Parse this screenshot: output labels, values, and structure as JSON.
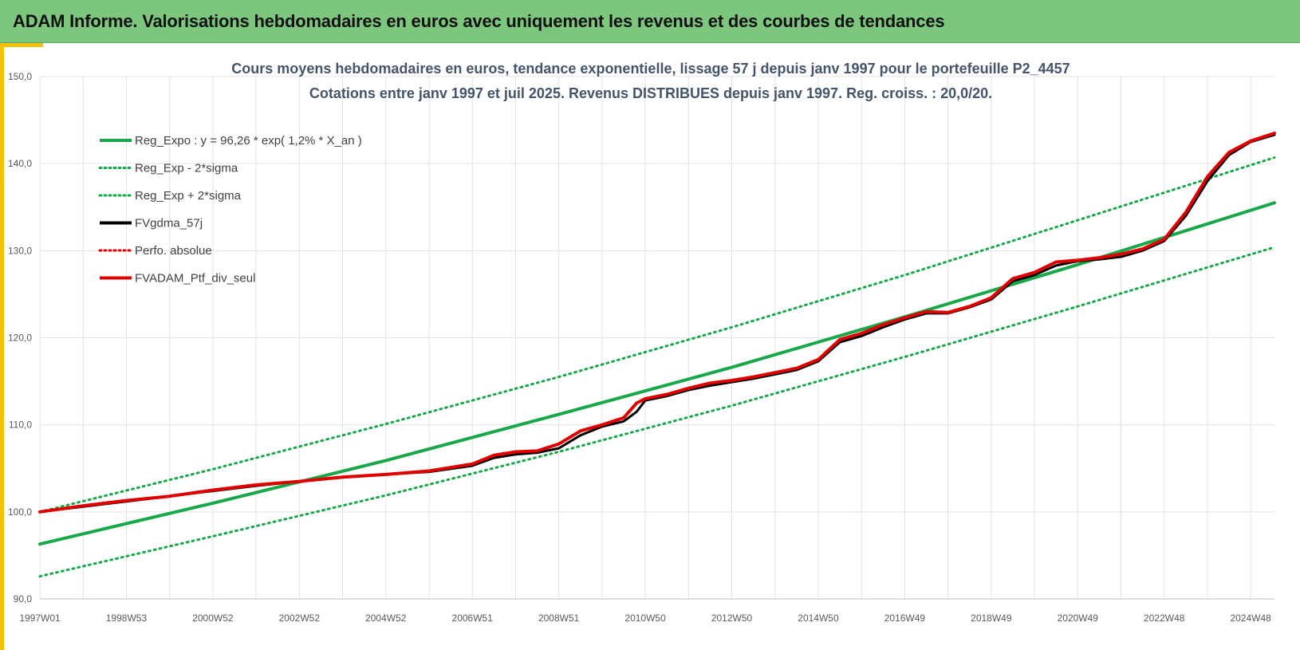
{
  "header": {
    "title": "ADAM Informe. Valorisations hebdomadaires en euros avec uniquement les revenus et des courbes de tendances"
  },
  "colors": {
    "header_bg": "#7dc67d",
    "accent": "#f2c200",
    "green": "#18a84a",
    "red": "#e00000",
    "black": "#000000",
    "title_text": "#44546a"
  },
  "chart_data": {
    "type": "line",
    "title_line1": "Cours moyens hebdomadaires  en euros, tendance exponentielle, lissage 57 j depuis janv 1997 pour le portefeuille P2_4457",
    "title_line2": "Cotations entre janv 1997 et juil 2025. Revenus DISTRIBUES depuis janv 1997. Reg. croiss. : 20,0/20.",
    "ylim": [
      90,
      150
    ],
    "yticks": [
      "90,0",
      "100,0",
      "110,0",
      "120,0",
      "130,0",
      "140,0",
      "150,0"
    ],
    "xlim": [
      1997.0,
      2025.55
    ],
    "xticks": [
      {
        "label": "1997W01",
        "x": 1997.0
      },
      {
        "label": "1998W53",
        "x": 1999.0
      },
      {
        "label": "2000W52",
        "x": 2001.0
      },
      {
        "label": "2002W52",
        "x": 2003.0
      },
      {
        "label": "2004W52",
        "x": 2005.0
      },
      {
        "label": "2006W51",
        "x": 2007.0
      },
      {
        "label": "2008W51",
        "x": 2009.0
      },
      {
        "label": "2010W50",
        "x": 2011.0
      },
      {
        "label": "2012W50",
        "x": 2013.0
      },
      {
        "label": "2014W50",
        "x": 2015.0
      },
      {
        "label": "2016W49",
        "x": 2017.0
      },
      {
        "label": "2018W49",
        "x": 2019.0
      },
      {
        "label": "2020W49",
        "x": 2021.0
      },
      {
        "label": "2022W48",
        "x": 2023.0
      },
      {
        "label": "2024W48",
        "x": 2025.0
      }
    ],
    "legend": [
      {
        "name": "Reg_Expo : y = 96,26 * exp( 1,2% *  X_an )",
        "color": "#18a84a",
        "style": "solid"
      },
      {
        "name": "Reg_Exp - 2*sigma",
        "color": "#18a84a",
        "style": "dotted"
      },
      {
        "name": "Reg_Exp + 2*sigma",
        "color": "#18a84a",
        "style": "dotted"
      },
      {
        "name": "FVgdma_57j",
        "color": "#000000",
        "style": "solid"
      },
      {
        "name": "Perfo. absolue",
        "color": "#e00000",
        "style": "dotted"
      },
      {
        "name": "FVADAM_Ptf_div_seul",
        "color": "#e00000",
        "style": "solid"
      }
    ],
    "series": [
      {
        "name": "Reg_Expo : y = 96,26 * exp( 1,2% *  X_an )",
        "x": [
          1997.0,
          2001.0,
          2005.0,
          2009.0,
          2013.0,
          2017.0,
          2021.0,
          2025.55
        ],
        "y": [
          96.3,
          101.0,
          105.9,
          111.2,
          116.6,
          122.4,
          128.4,
          135.5
        ]
      },
      {
        "name": "Reg_Exp - 2*sigma",
        "x": [
          1997.0,
          2001.0,
          2005.0,
          2009.0,
          2013.0,
          2017.0,
          2021.0,
          2025.55
        ],
        "y": [
          92.6,
          97.2,
          101.9,
          106.9,
          112.2,
          117.8,
          123.6,
          130.4
        ]
      },
      {
        "name": "Reg_Exp + 2*sigma",
        "x": [
          1997.0,
          2001.0,
          2005.0,
          2009.0,
          2013.0,
          2017.0,
          2021.0,
          2025.55
        ],
        "y": [
          100.0,
          104.9,
          110.1,
          115.5,
          121.2,
          127.2,
          133.5,
          140.7
        ]
      },
      {
        "name": "FVgdma_57j",
        "x": [
          1997.0,
          1998.0,
          1999.0,
          2000.0,
          2001.0,
          2002.0,
          2003.0,
          2004.0,
          2005.0,
          2006.0,
          2007.0,
          2007.5,
          2008.0,
          2008.5,
          2009.0,
          2009.5,
          2010.0,
          2010.5,
          2010.8,
          2011.0,
          2011.5,
          2012.0,
          2012.5,
          2013.0,
          2013.5,
          2014.0,
          2014.5,
          2015.0,
          2015.5,
          2016.0,
          2016.5,
          2017.0,
          2017.5,
          2018.0,
          2018.5,
          2019.0,
          2019.5,
          2020.0,
          2020.5,
          2021.0,
          2021.5,
          2022.0,
          2022.5,
          2023.0,
          2023.5,
          2024.0,
          2024.5,
          2025.0,
          2025.55
        ],
        "y": [
          100.0,
          100.6,
          101.2,
          101.8,
          102.4,
          103.0,
          103.5,
          104.0,
          104.3,
          104.6,
          105.3,
          106.2,
          106.6,
          106.8,
          107.3,
          108.8,
          109.8,
          110.4,
          111.5,
          112.8,
          113.3,
          114.0,
          114.5,
          114.9,
          115.3,
          115.8,
          116.3,
          117.3,
          119.5,
          120.2,
          121.2,
          122.1,
          122.8,
          122.8,
          123.5,
          124.4,
          126.5,
          127.2,
          128.3,
          128.8,
          129.0,
          129.3,
          130.0,
          131.1,
          134.0,
          138.0,
          141.0,
          142.5,
          143.3
        ]
      },
      {
        "name": "FVADAM_Ptf_div_seul",
        "x": [
          1997.0,
          1998.0,
          1999.0,
          2000.0,
          2001.0,
          2002.0,
          2003.0,
          2004.0,
          2005.0,
          2006.0,
          2007.0,
          2007.5,
          2008.0,
          2008.5,
          2009.0,
          2009.5,
          2010.0,
          2010.5,
          2010.8,
          2011.0,
          2011.5,
          2012.0,
          2012.5,
          2013.0,
          2013.5,
          2014.0,
          2014.5,
          2015.0,
          2015.5,
          2016.0,
          2016.5,
          2017.0,
          2017.5,
          2018.0,
          2018.5,
          2019.0,
          2019.5,
          2020.0,
          2020.5,
          2021.0,
          2021.5,
          2022.0,
          2022.5,
          2023.0,
          2023.5,
          2024.0,
          2024.5,
          2025.0,
          2025.55
        ],
        "y": [
          100.0,
          100.7,
          101.3,
          101.8,
          102.5,
          103.1,
          103.5,
          104.0,
          104.3,
          104.7,
          105.5,
          106.5,
          106.9,
          107.0,
          107.8,
          109.3,
          110.0,
          110.8,
          112.5,
          113.0,
          113.5,
          114.2,
          114.8,
          115.1,
          115.5,
          116.0,
          116.5,
          117.5,
          119.8,
          120.5,
          121.5,
          122.3,
          123.0,
          122.9,
          123.6,
          124.6,
          126.8,
          127.5,
          128.7,
          128.9,
          129.2,
          129.6,
          130.2,
          131.3,
          134.4,
          138.5,
          141.3,
          142.6,
          143.5
        ]
      }
    ]
  }
}
